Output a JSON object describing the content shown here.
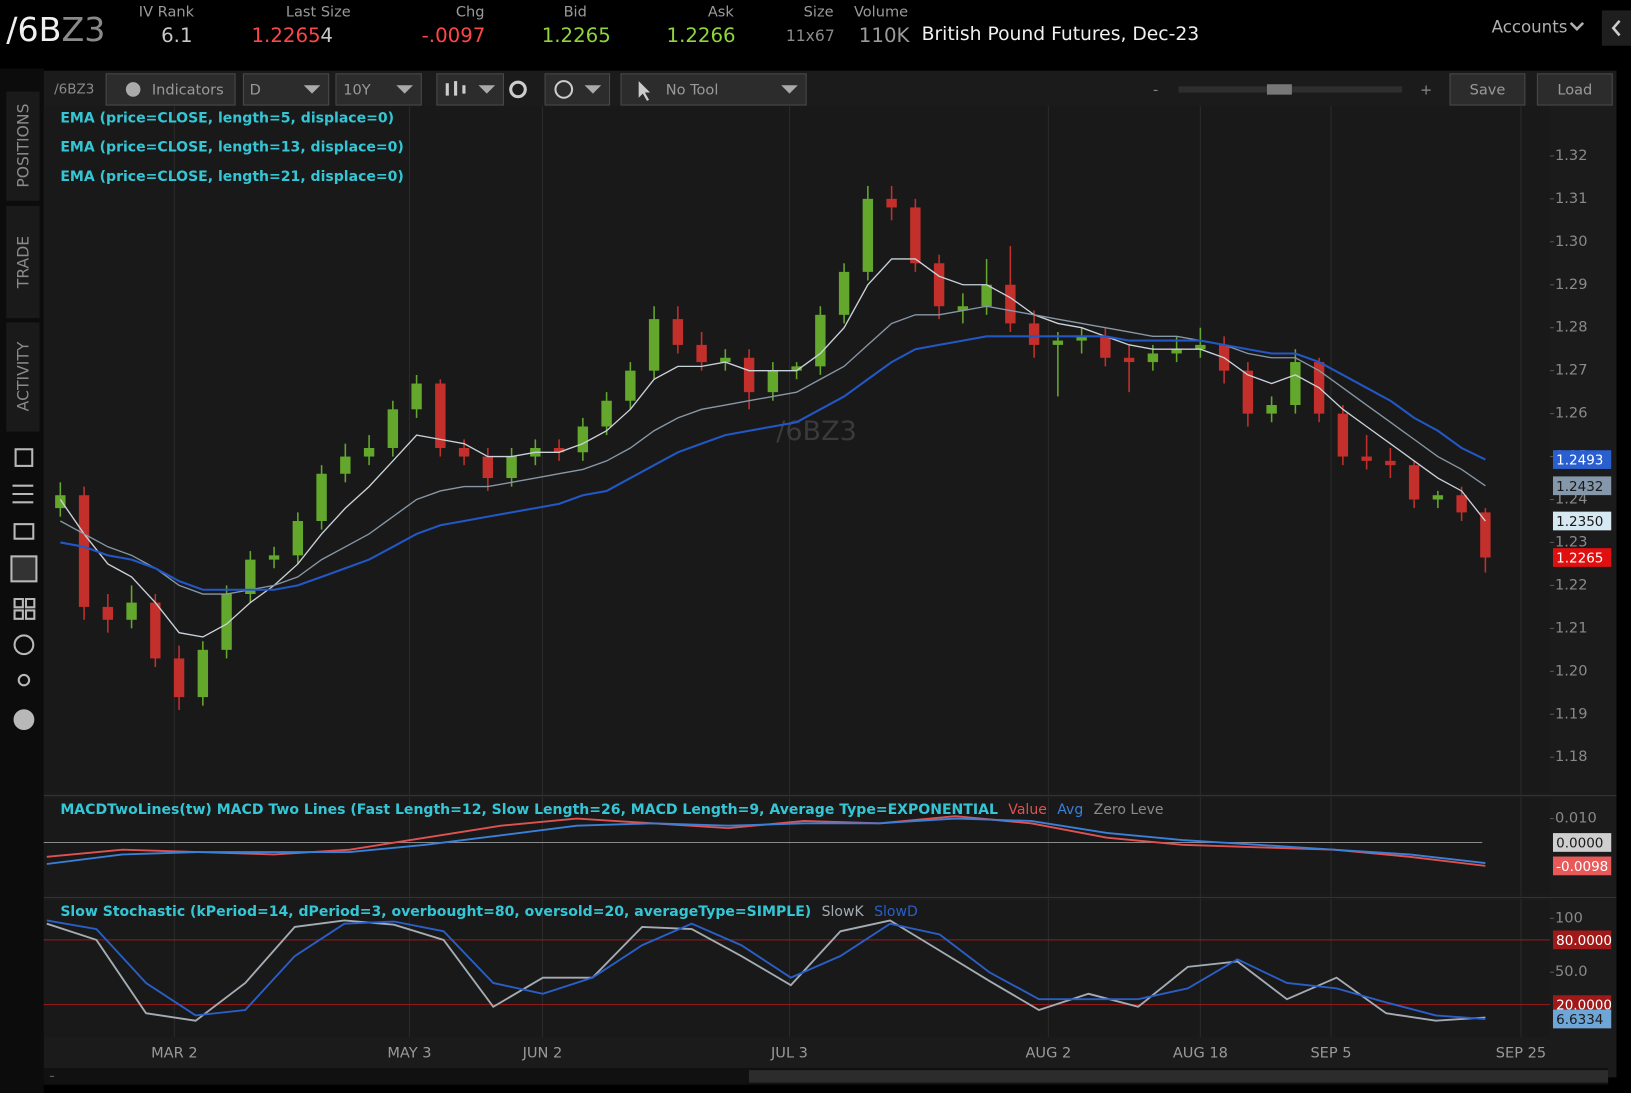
{
  "header": {
    "symbol": "/6B",
    "symbol_suffix": "Z3",
    "fields": [
      {
        "label": "IV Rank",
        "value": "6.1"
      },
      {
        "label": "Last Size",
        "value": "1.2265",
        "extra": "4"
      },
      {
        "label": "Chg",
        "value": "-.0097"
      },
      {
        "label": "Bid",
        "value": "1.2265"
      },
      {
        "label": "Ask",
        "value": "1.2266"
      },
      {
        "label": "Size",
        "value": "11x67"
      },
      {
        "label": "Volume",
        "value": "110K"
      }
    ],
    "description": "British Pound Futures, Dec-23",
    "accounts": "Accounts"
  },
  "toolbar": {
    "symbol": "/6BZ3",
    "indicators": "Indicators",
    "aggregation": "D",
    "period": "10Y",
    "tool": "No Tool",
    "save": "Save",
    "load": "Load"
  },
  "side_tabs": [
    "POSITIONS",
    "TRADE",
    "ACTIVITY"
  ],
  "chart_data": [
    {
      "type": "candlestick",
      "watermark": "/6BZ3",
      "legend_color": "#35c6d6",
      "up_color": "#63a82c",
      "down_color": "#c3302b",
      "candles": [
        [
          1.238,
          1.244,
          1.236,
          1.241
        ],
        [
          1.241,
          1.243,
          1.212,
          1.215
        ],
        [
          1.215,
          1.218,
          1.209,
          1.212
        ],
        [
          1.212,
          1.22,
          1.21,
          1.216
        ],
        [
          1.216,
          1.218,
          1.201,
          1.203
        ],
        [
          1.203,
          1.206,
          1.191,
          1.194
        ],
        [
          1.194,
          1.207,
          1.192,
          1.205
        ],
        [
          1.205,
          1.22,
          1.203,
          1.218
        ],
        [
          1.218,
          1.228,
          1.216,
          1.226
        ],
        [
          1.226,
          1.229,
          1.224,
          1.227
        ],
        [
          1.227,
          1.237,
          1.225,
          1.235
        ],
        [
          1.235,
          1.248,
          1.233,
          1.246
        ],
        [
          1.246,
          1.253,
          1.244,
          1.25
        ],
        [
          1.25,
          1.255,
          1.248,
          1.252
        ],
        [
          1.252,
          1.263,
          1.25,
          1.261
        ],
        [
          1.261,
          1.269,
          1.259,
          1.267
        ],
        [
          1.267,
          1.268,
          1.25,
          1.252
        ],
        [
          1.252,
          1.254,
          1.248,
          1.25
        ],
        [
          1.25,
          1.252,
          1.242,
          1.245
        ],
        [
          1.245,
          1.252,
          1.243,
          1.25
        ],
        [
          1.25,
          1.254,
          1.248,
          1.252
        ],
        [
          1.252,
          1.254,
          1.249,
          1.251
        ],
        [
          1.251,
          1.259,
          1.249,
          1.257
        ],
        [
          1.257,
          1.265,
          1.255,
          1.263
        ],
        [
          1.263,
          1.272,
          1.261,
          1.27
        ],
        [
          1.27,
          1.285,
          1.268,
          1.282
        ],
        [
          1.282,
          1.285,
          1.274,
          1.276
        ],
        [
          1.276,
          1.279,
          1.27,
          1.272
        ],
        [
          1.272,
          1.275,
          1.27,
          1.273
        ],
        [
          1.273,
          1.275,
          1.261,
          1.265
        ],
        [
          1.265,
          1.272,
          1.263,
          1.27
        ],
        [
          1.27,
          1.272,
          1.268,
          1.271
        ],
        [
          1.271,
          1.285,
          1.269,
          1.283
        ],
        [
          1.283,
          1.295,
          1.281,
          1.293
        ],
        [
          1.293,
          1.313,
          1.291,
          1.31
        ],
        [
          1.31,
          1.313,
          1.305,
          1.308
        ],
        [
          1.308,
          1.31,
          1.293,
          1.295
        ],
        [
          1.295,
          1.297,
          1.282,
          1.285
        ],
        [
          1.284,
          1.288,
          1.281,
          1.285
        ],
        [
          1.285,
          1.296,
          1.283,
          1.29
        ],
        [
          1.29,
          1.299,
          1.279,
          1.281
        ],
        [
          1.281,
          1.284,
          1.273,
          1.276
        ],
        [
          1.276,
          1.279,
          1.264,
          1.277
        ],
        [
          1.277,
          1.28,
          1.274,
          1.278
        ],
        [
          1.278,
          1.28,
          1.271,
          1.273
        ],
        [
          1.273,
          1.276,
          1.265,
          1.272
        ],
        [
          1.272,
          1.276,
          1.27,
          1.274
        ],
        [
          1.274,
          1.278,
          1.272,
          1.275
        ],
        [
          1.275,
          1.28,
          1.273,
          1.276
        ],
        [
          1.276,
          1.278,
          1.267,
          1.27
        ],
        [
          1.27,
          1.272,
          1.257,
          1.26
        ],
        [
          1.26,
          1.264,
          1.258,
          1.262
        ],
        [
          1.262,
          1.275,
          1.26,
          1.272
        ],
        [
          1.272,
          1.273,
          1.258,
          1.26
        ],
        [
          1.26,
          1.262,
          1.248,
          1.25
        ],
        [
          1.25,
          1.255,
          1.247,
          1.249
        ],
        [
          1.249,
          1.252,
          1.245,
          1.248
        ],
        [
          1.248,
          1.249,
          1.238,
          1.24
        ],
        [
          1.24,
          1.242,
          1.238,
          1.241
        ],
        [
          1.241,
          1.243,
          1.235,
          1.237
        ],
        [
          1.237,
          1.238,
          1.223,
          1.2265
        ]
      ],
      "last_value_label": "1.2265",
      "last_label_color": "#e01010",
      "series": [
        {
          "name": "EMA (price=CLOSE, length=5, displace=0)",
          "color": "#c9d1d9",
          "label_color": "#d6e8f2",
          "last_value_label": "1.2350",
          "values": [
            1.24,
            1.232,
            1.225,
            1.222,
            1.216,
            1.209,
            1.208,
            1.211,
            1.216,
            1.22,
            1.225,
            1.232,
            1.238,
            1.243,
            1.249,
            1.255,
            1.254,
            1.253,
            1.25,
            1.25,
            1.251,
            1.251,
            1.253,
            1.256,
            1.261,
            1.268,
            1.271,
            1.271,
            1.272,
            1.27,
            1.27,
            1.27,
            1.274,
            1.28,
            1.29,
            1.296,
            1.296,
            1.292,
            1.29,
            1.29,
            1.287,
            1.283,
            1.281,
            1.28,
            1.278,
            1.276,
            1.275,
            1.275,
            1.275,
            1.273,
            1.269,
            1.267,
            1.269,
            1.266,
            1.261,
            1.257,
            1.253,
            1.249,
            1.245,
            1.242,
            1.235
          ]
        },
        {
          "name": "EMA (price=CLOSE, length=13, displace=0)",
          "color": "#8797a6",
          "label_color": "#8497ab",
          "last_value_label": "1.2432",
          "values": [
            1.235,
            1.232,
            1.229,
            1.227,
            1.224,
            1.22,
            1.218,
            1.218,
            1.219,
            1.22,
            1.222,
            1.226,
            1.229,
            1.232,
            1.236,
            1.24,
            1.242,
            1.243,
            1.243,
            1.244,
            1.245,
            1.246,
            1.247,
            1.249,
            1.252,
            1.256,
            1.259,
            1.261,
            1.262,
            1.263,
            1.264,
            1.265,
            1.268,
            1.271,
            1.276,
            1.281,
            1.283,
            1.283,
            1.284,
            1.285,
            1.284,
            1.283,
            1.282,
            1.281,
            1.28,
            1.279,
            1.278,
            1.278,
            1.277,
            1.276,
            1.274,
            1.273,
            1.273,
            1.27,
            1.266,
            1.262,
            1.258,
            1.254,
            1.25,
            1.247,
            1.2432
          ]
        },
        {
          "name": "EMA (price=CLOSE, length=21, displace=0)",
          "color": "#2257c6",
          "label_color": "#2a5fcf",
          "last_value_label": "1.2493",
          "values": [
            1.23,
            1.229,
            1.227,
            1.226,
            1.224,
            1.221,
            1.219,
            1.219,
            1.219,
            1.219,
            1.22,
            1.222,
            1.224,
            1.226,
            1.229,
            1.232,
            1.234,
            1.235,
            1.236,
            1.237,
            1.238,
            1.239,
            1.241,
            1.242,
            1.245,
            1.248,
            1.251,
            1.253,
            1.255,
            1.256,
            1.257,
            1.258,
            1.261,
            1.264,
            1.268,
            1.272,
            1.275,
            1.276,
            1.277,
            1.278,
            1.278,
            1.278,
            1.278,
            1.278,
            1.278,
            1.277,
            1.277,
            1.277,
            1.277,
            1.276,
            1.275,
            1.274,
            1.274,
            1.272,
            1.269,
            1.266,
            1.263,
            1.259,
            1.256,
            1.252,
            1.2493
          ]
        }
      ],
      "ylim": [
        1.1718,
        1.3316
      ],
      "yticks": [
        {
          "value": 1.18,
          "label": "1.18"
        },
        {
          "value": 1.19,
          "label": "1.19"
        },
        {
          "value": 1.2,
          "label": "1.20"
        },
        {
          "value": 1.21,
          "label": "1.21"
        },
        {
          "value": 1.22,
          "label": "1.22"
        },
        {
          "value": 1.23,
          "label": "1.23"
        },
        {
          "value": 1.24,
          "label": "1.24"
        },
        {
          "value": 1.25,
          "label": "1.25"
        },
        {
          "value": 1.26,
          "label": "1.26"
        },
        {
          "value": 1.27,
          "label": "1.27"
        },
        {
          "value": 1.28,
          "label": "1.28"
        },
        {
          "value": 1.29,
          "label": "1.29"
        },
        {
          "value": 1.3,
          "label": "1.30"
        },
        {
          "value": 1.31,
          "label": "1.31"
        },
        {
          "value": 1.32,
          "label": "1.32"
        }
      ],
      "xticks": [
        {
          "value": 4.8,
          "label": "MAR 2"
        },
        {
          "value": 14.7,
          "label": "MAY 3"
        },
        {
          "value": 20.3,
          "label": "JUN 2"
        },
        {
          "value": 30.7,
          "label": "JUL 3"
        },
        {
          "value": 41.6,
          "label": "AUG 2"
        },
        {
          "value": 48,
          "label": "AUG 18"
        },
        {
          "value": 53.5,
          "label": "SEP 5"
        },
        {
          "value": 61.5,
          "label": "SEP 25"
        }
      ]
    },
    {
      "type": "line",
      "title": "MACDTwoLines(tw) MACD Two Lines (Fast Length=12, Slow Length=26, MACD Length=9, Average Type=EXPONENTIAL",
      "title_color": "#35c6d6",
      "series": [
        {
          "name": "Value",
          "color": "#e05252",
          "label_color": "#e85a5a",
          "last_value_label": "-0.0098",
          "values": [
            -0.006,
            -0.003,
            -0.004,
            -0.005,
            -0.003,
            0.002,
            0.007,
            0.01,
            0.008,
            0.006,
            0.009,
            0.008,
            0.011,
            0.008,
            0.002,
            -0.001,
            -0.002,
            -0.003,
            -0.006,
            -0.0098
          ]
        },
        {
          "name": "Avg",
          "color": "#3a7fd8",
          "values": [
            -0.009,
            -0.005,
            -0.004,
            -0.004,
            -0.004,
            -0.001,
            0.003,
            0.007,
            0.008,
            0.007,
            0.008,
            0.008,
            0.01,
            0.009,
            0.004,
            0.001,
            -0.001,
            -0.003,
            -0.005,
            -0.0086
          ]
        }
      ],
      "zero_line": {
        "name": "Zero Leve",
        "value": 0,
        "label": "0.0000",
        "color": "#8a8a8a"
      },
      "ylim": [
        -0.0217,
        0.0183
      ],
      "yticks": [
        {
          "value": 0.01,
          "label": "0.010"
        }
      ]
    },
    {
      "type": "line",
      "title": "Slow Stochastic (kPeriod=14, dPeriod=3, overbought=80, oversold=20, averageType=SIMPLE)",
      "title_color": "#35c6d6",
      "series": [
        {
          "name": "SlowK",
          "color": "#a3abb3",
          "values": [
            95,
            80,
            12,
            5,
            40,
            92,
            98,
            94,
            80,
            18,
            45,
            45,
            92,
            90,
            65,
            38,
            88,
            98,
            70,
            42,
            15,
            30,
            18,
            55,
            60,
            25,
            45,
            12,
            5,
            8
          ]
        },
        {
          "name": "SlowD",
          "color": "#2a5fc8",
          "label_color": "#6fa6d8",
          "last_value_label": "6.6334",
          "values": [
            98,
            90,
            40,
            10,
            15,
            65,
            95,
            97,
            88,
            40,
            30,
            45,
            75,
            95,
            75,
            45,
            65,
            95,
            85,
            50,
            25,
            25,
            25,
            35,
            62,
            40,
            35,
            22,
            10,
            6.6334
          ]
        }
      ],
      "levels": [
        {
          "value": 80,
          "label": "80.0000"
        },
        {
          "value": 20,
          "label": "20.0000"
        }
      ],
      "level_color": "#a01818",
      "ylim": [
        -9.9,
        116.4
      ],
      "yticks": [
        100,
        {
          "value": 50,
          "label": "50.0"
        }
      ]
    }
  ]
}
